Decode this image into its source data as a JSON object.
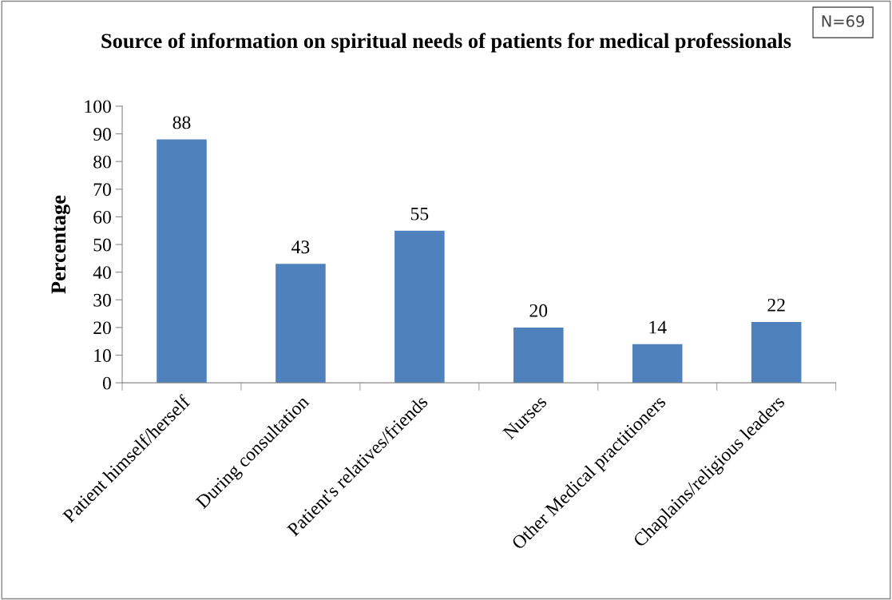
{
  "chart_data": {
    "type": "bar",
    "title": "Source of information on spiritual needs of patients for medical professionals",
    "ylabel": "Percentage",
    "categories": [
      "Patient himself/herself",
      "During consultation",
      "Patient's relatives/friends",
      "Nurses",
      "Other Medical practitioners",
      "Chaplains/religious leaders"
    ],
    "values": [
      88,
      43,
      55,
      20,
      14,
      22
    ],
    "color": "#4f81bd",
    "ylim": [
      0,
      100
    ],
    "yticks": [
      0,
      10,
      20,
      30,
      40,
      50,
      60,
      70,
      80,
      90,
      100
    ],
    "data_labels": true,
    "grid": false,
    "legend": false,
    "annotations": [
      "N=69"
    ]
  }
}
